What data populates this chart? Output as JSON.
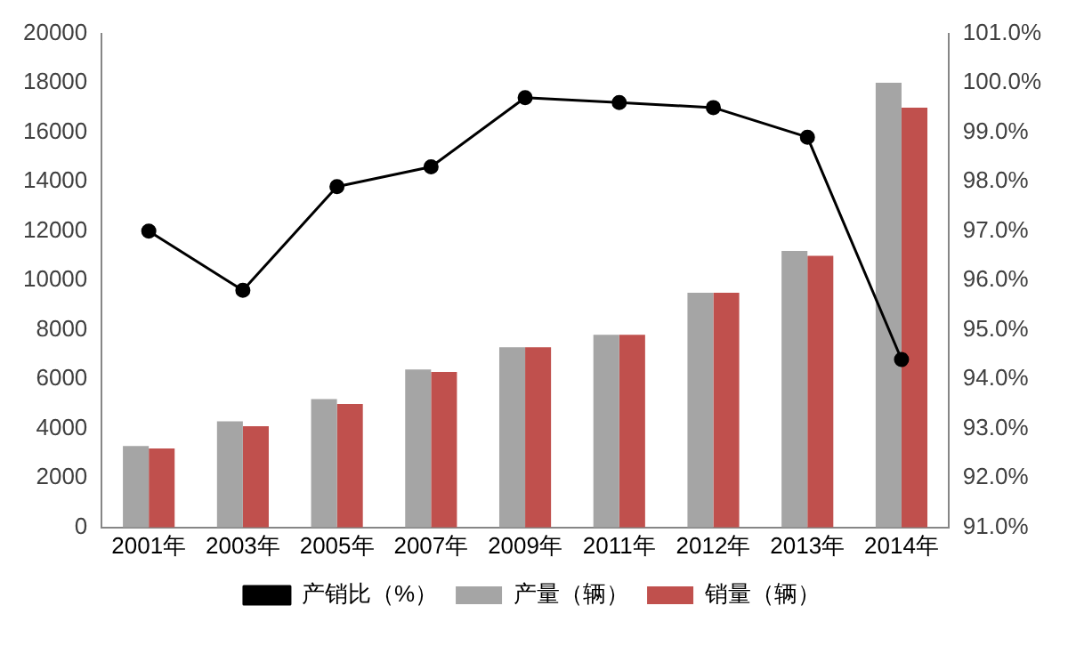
{
  "chart_data": {
    "type": "bar",
    "categories": [
      "2001年",
      "2003年",
      "2005年",
      "2007年",
      "2009年",
      "2011年",
      "2012年",
      "2013年",
      "2014年"
    ],
    "series": [
      {
        "name": "产量（辆）",
        "color": "#a5a5a5",
        "values": [
          3300,
          4300,
          5200,
          6400,
          7300,
          7800,
          9500,
          11200,
          18000
        ]
      },
      {
        "name": "销量（辆）",
        "color": "#c0504d",
        "values": [
          3200,
          4100,
          5000,
          6300,
          7300,
          7800,
          9500,
          11000,
          17000
        ]
      },
      {
        "name": "产销比（%）",
        "type": "line",
        "axis": "y2",
        "color": "#000000",
        "marker": "circle",
        "values": [
          97.0,
          95.8,
          97.9,
          98.3,
          99.7,
          99.6,
          99.5,
          98.9,
          94.4
        ]
      }
    ],
    "ylim": [
      0,
      20000
    ],
    "yticks": [
      0,
      2000,
      4000,
      6000,
      8000,
      10000,
      12000,
      14000,
      16000,
      18000,
      20000
    ],
    "y2lim": [
      91,
      101
    ],
    "y2ticks": [
      {
        "value": 91,
        "label": "91.0%"
      },
      {
        "value": 92,
        "label": "92.0%"
      },
      {
        "value": 93,
        "label": "93.0%"
      },
      {
        "value": 94,
        "label": "94.0%"
      },
      {
        "value": 95,
        "label": "95.0%"
      },
      {
        "value": 96,
        "label": "96.0%"
      },
      {
        "value": 97,
        "label": "97.0%"
      },
      {
        "value": 98,
        "label": "98.0%"
      },
      {
        "value": 99,
        "label": "99.0%"
      },
      {
        "value": 100,
        "label": "100.0%"
      },
      {
        "value": 101,
        "label": "101.0%"
      }
    ],
    "grid": false,
    "legend": "bottom"
  }
}
